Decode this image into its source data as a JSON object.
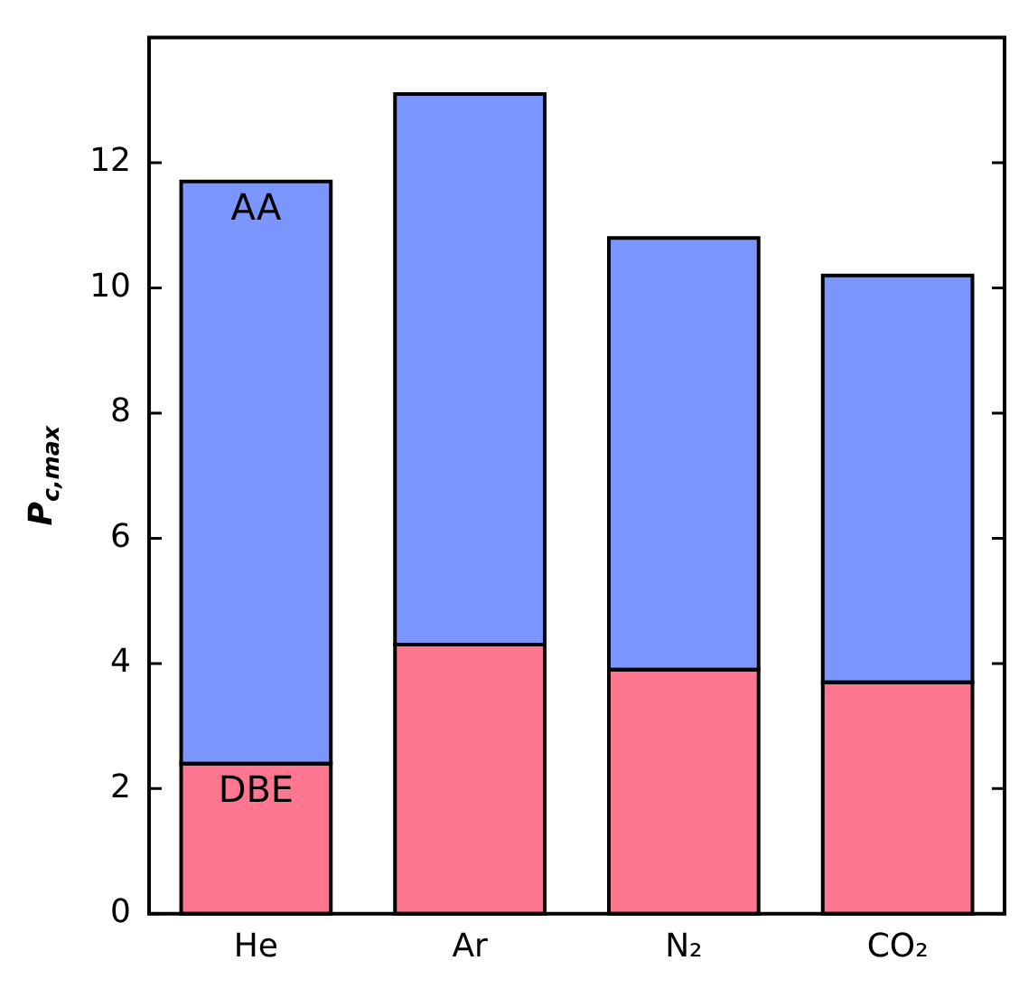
{
  "chart_data": {
    "type": "bar",
    "stacked": true,
    "ylabel": "P$_{c,max}$",
    "categories": [
      "He",
      "Ar",
      "N₂",
      "CO₂"
    ],
    "series": [
      {
        "name": "DBE",
        "color": "#ff7690",
        "values": [
          2.4,
          4.3,
          3.9,
          3.7
        ]
      },
      {
        "name": "AA",
        "color": "#7b96ff",
        "values": [
          9.3,
          8.8,
          6.9,
          6.5
        ]
      }
    ],
    "ylim": [
      0,
      14
    ],
    "yticks": [
      0,
      2,
      4,
      6,
      8,
      10,
      12
    ],
    "grid": false,
    "legend": false
  }
}
